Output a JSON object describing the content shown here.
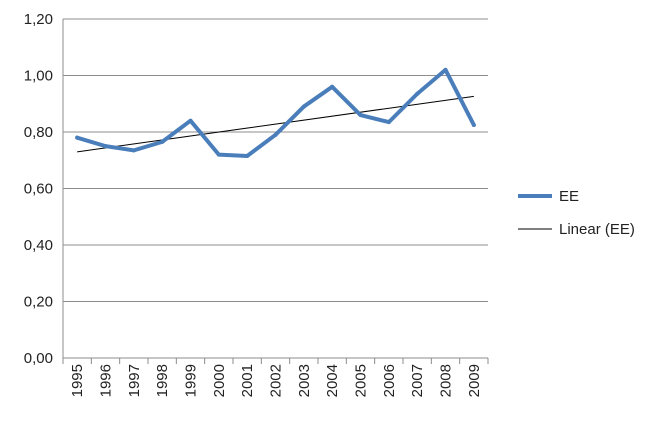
{
  "chart_data": {
    "type": "line",
    "categories": [
      "1995",
      "1996",
      "1997",
      "1998",
      "1999",
      "2000",
      "2001",
      "2002",
      "2003",
      "2004",
      "2005",
      "2006",
      "2007",
      "2008",
      "2009"
    ],
    "series": [
      {
        "name": "EE",
        "values": [
          0.78,
          0.75,
          0.735,
          0.765,
          0.84,
          0.72,
          0.715,
          0.79,
          0.89,
          0.96,
          0.86,
          0.835,
          0.935,
          1.02,
          0.825
        ],
        "color": "#4a7ebb"
      }
    ],
    "trendline": {
      "name": "Linear (EE)",
      "type": "linear",
      "color": "#000000"
    },
    "y_tick_labels": [
      "0,00",
      "0,20",
      "0,40",
      "0,60",
      "0,80",
      "1,00",
      "1,20"
    ],
    "ylim": [
      0,
      1.2
    ],
    "grid": true,
    "legend_position": "right"
  }
}
